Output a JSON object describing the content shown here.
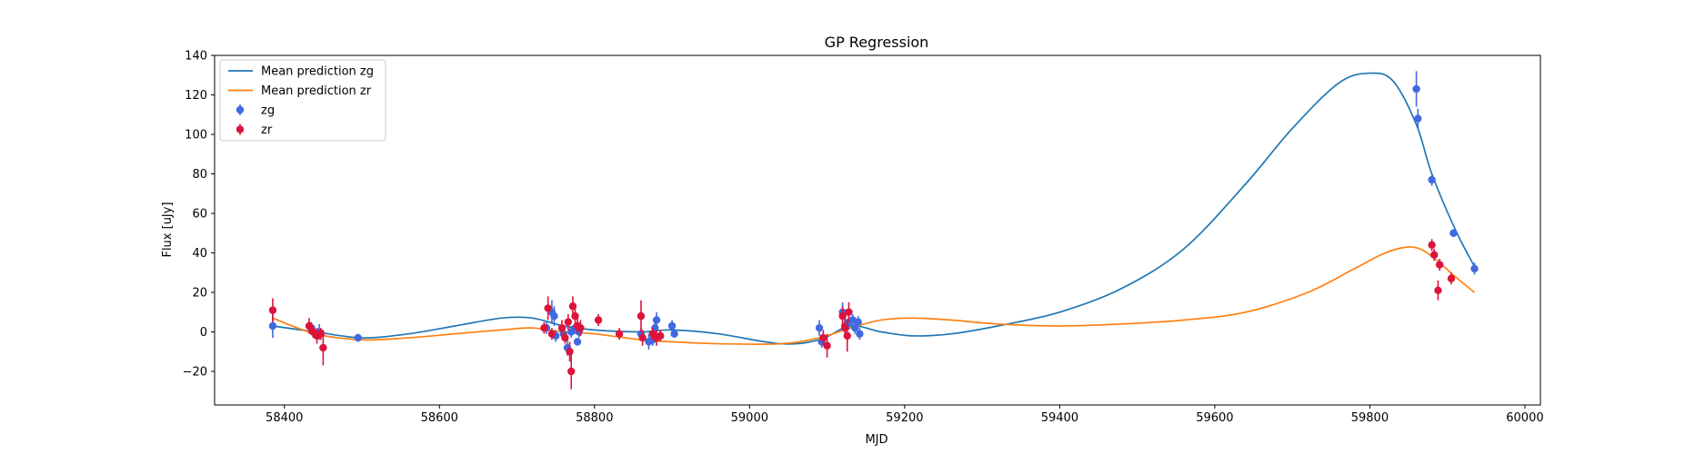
{
  "chart_data": {
    "type": "scatter",
    "title": "GP Regression",
    "xlabel": "MJD",
    "ylabel": "Flux [uJy]",
    "xlim": [
      58310,
      60020
    ],
    "ylim": [
      -37,
      140
    ],
    "xticks": [
      58400,
      58600,
      58800,
      59000,
      59200,
      59400,
      59600,
      59800,
      60000
    ],
    "yticks": [
      -20,
      0,
      20,
      40,
      60,
      80,
      100,
      120,
      140
    ],
    "grid": false,
    "legend_position": "top-left",
    "legend": [
      {
        "label": "Mean prediction zg",
        "kind": "line",
        "color": "#1f77b4"
      },
      {
        "label": "Mean prediction zr",
        "kind": "line",
        "color": "#ff7f0e"
      },
      {
        "label": "zg",
        "kind": "errorbar",
        "color": "#4169e1"
      },
      {
        "label": "zr",
        "kind": "errorbar",
        "color": "#dc143c"
      }
    ],
    "lines": [
      {
        "name": "Mean prediction zg",
        "color": "#1f77b4",
        "x": [
          58385,
          58440,
          58500,
          58560,
          58620,
          58680,
          58720,
          58760,
          58800,
          58860,
          58900,
          58960,
          59040,
          59090,
          59130,
          59170,
          59210,
          59260,
          59320,
          59400,
          59480,
          59560,
          59640,
          59700,
          59760,
          59800,
          59830,
          59860,
          59880,
          59910,
          59935
        ],
        "y": [
          3,
          0,
          -3,
          -1,
          3,
          7,
          7,
          3,
          1,
          0,
          1,
          -1,
          -6,
          -4,
          3,
          0,
          -2,
          -1,
          3,
          10,
          22,
          42,
          75,
          103,
          126,
          131,
          127,
          105,
          80,
          52,
          33
        ]
      },
      {
        "name": "Mean prediction zr",
        "color": "#ff7f0e",
        "x": [
          58385,
          58440,
          58500,
          58560,
          58620,
          58680,
          58720,
          58760,
          58800,
          58860,
          58900,
          58960,
          59040,
          59090,
          59130,
          59170,
          59210,
          59260,
          59320,
          59400,
          59480,
          59560,
          59640,
          59720,
          59780,
          59820,
          59850,
          59870,
          59890,
          59910,
          59935
        ],
        "y": [
          7,
          -1,
          -4,
          -3,
          -1,
          1,
          2,
          0,
          -1,
          -4,
          -5,
          -6,
          -6,
          -3,
          2,
          6,
          7,
          6,
          4,
          3,
          4,
          6,
          10,
          20,
          32,
          40,
          43,
          41,
          35,
          28,
          20
        ]
      }
    ],
    "series": [
      {
        "name": "zg",
        "color": "#4169e1",
        "x": [
          58385,
          58435,
          58445,
          58495,
          58738,
          58745,
          58748,
          58750,
          58760,
          58765,
          58770,
          58775,
          58778,
          58780,
          58860,
          58870,
          58875,
          58878,
          58880,
          58900,
          58903,
          59090,
          59093,
          59120,
          59123,
          59128,
          59133,
          59136,
          59140,
          59142,
          59860,
          59862,
          59880,
          59908,
          59935
        ],
        "y": [
          3,
          2,
          0,
          -3,
          2,
          10,
          8,
          -2,
          -1,
          -8,
          0,
          2,
          -5,
          0,
          -1,
          -5,
          -4,
          2,
          6,
          3,
          -1,
          2,
          -5,
          10,
          3,
          5,
          6,
          2,
          5,
          -1,
          123,
          108,
          77,
          50,
          32
        ],
        "err": [
          6,
          3,
          4,
          2,
          3,
          6,
          5,
          3,
          3,
          4,
          3,
          3,
          2,
          3,
          3,
          4,
          3,
          4,
          4,
          3,
          2,
          4,
          3,
          5,
          4,
          4,
          3,
          3,
          3,
          3,
          9,
          5,
          3,
          2,
          3
        ]
      },
      {
        "name": "zr",
        "color": "#dc143c",
        "x": [
          58385,
          58432,
          58437,
          58442,
          58447,
          58450,
          58735,
          58740,
          58745,
          58758,
          58762,
          58766,
          58768,
          58770,
          58772,
          58775,
          58778,
          58782,
          58805,
          58832,
          58860,
          58862,
          58875,
          58880,
          58885,
          59095,
          59100,
          59120,
          59123,
          59126,
          59128,
          59880,
          59883,
          59888,
          59890,
          59905
        ],
        "y": [
          11,
          3,
          0,
          -2,
          -1,
          -8,
          2,
          12,
          -1,
          2,
          -3,
          5,
          -10,
          -20,
          13,
          8,
          3,
          2,
          6,
          -1,
          8,
          -3,
          -1,
          -3,
          -2,
          -3,
          -7,
          8,
          2,
          -2,
          10,
          44,
          39,
          21,
          34,
          27
        ],
        "err": [
          6,
          4,
          3,
          4,
          3,
          9,
          3,
          6,
          3,
          4,
          3,
          4,
          5,
          9,
          5,
          5,
          4,
          4,
          3,
          3,
          8,
          4,
          3,
          4,
          3,
          4,
          6,
          5,
          5,
          8,
          5,
          3,
          3,
          5,
          3,
          3
        ]
      }
    ]
  }
}
